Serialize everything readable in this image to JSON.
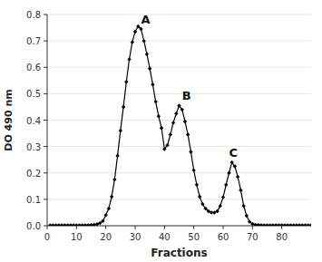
{
  "chart_data": {
    "type": "line",
    "xlabel": "Fractions",
    "ylabel": "DO 490 nm",
    "xlim": [
      0,
      90
    ],
    "ylim": [
      0,
      0.8
    ],
    "xticks": [
      0,
      10,
      20,
      30,
      40,
      50,
      60,
      70,
      80
    ],
    "yticks": [
      {
        "value": 0,
        "label": "0.0"
      },
      0.1,
      0.2,
      0.3,
      0.4,
      0.5,
      0.6,
      0.7,
      0.8
    ],
    "color": "#000000",
    "marker": "diamond",
    "annotations": [
      {
        "label": "A",
        "x": 32,
        "y": 0.758
      },
      {
        "label": "B",
        "x": 46,
        "y": 0.47
      },
      {
        "label": "C",
        "x": 62,
        "y": 0.255
      }
    ],
    "x": [
      1,
      2,
      3,
      4,
      5,
      6,
      7,
      8,
      9,
      10,
      11,
      12,
      13,
      14,
      15,
      16,
      17,
      18,
      19,
      20,
      21,
      22,
      23,
      24,
      25,
      26,
      27,
      28,
      29,
      30,
      31,
      32,
      33,
      34,
      35,
      36,
      37,
      38,
      39,
      40,
      41,
      42,
      43,
      44,
      45,
      46,
      47,
      48,
      49,
      50,
      51,
      52,
      53,
      54,
      55,
      56,
      57,
      58,
      59,
      60,
      61,
      62,
      63,
      64,
      65,
      66,
      67,
      68,
      69,
      70,
      71,
      72,
      73,
      74,
      75,
      76,
      77,
      78,
      79,
      80,
      81,
      82,
      83,
      84,
      85,
      86,
      87,
      88,
      89,
      90
    ],
    "values": [
      0.002,
      0.002,
      0.002,
      0.002,
      0.002,
      0.002,
      0.002,
      0.002,
      0.002,
      0.002,
      0.002,
      0.002,
      0.002,
      0.002,
      0.003,
      0.004,
      0.006,
      0.01,
      0.018,
      0.04,
      0.065,
      0.11,
      0.175,
      0.265,
      0.36,
      0.45,
      0.545,
      0.63,
      0.695,
      0.735,
      0.755,
      0.745,
      0.7,
      0.65,
      0.595,
      0.535,
      0.47,
      0.415,
      0.37,
      0.29,
      0.305,
      0.345,
      0.39,
      0.425,
      0.455,
      0.44,
      0.395,
      0.345,
      0.28,
      0.21,
      0.155,
      0.11,
      0.082,
      0.065,
      0.055,
      0.05,
      0.05,
      0.055,
      0.075,
      0.108,
      0.155,
      0.2,
      0.24,
      0.225,
      0.185,
      0.135,
      0.075,
      0.038,
      0.015,
      0.007,
      0.004,
      0.003,
      0.002,
      0.002,
      0.002,
      0.002,
      0.002,
      0.002,
      0.002,
      0.002,
      0.002,
      0.002,
      0.002,
      0.002,
      0.002,
      0.002,
      0.002,
      0.002,
      0.002,
      0.002
    ]
  }
}
